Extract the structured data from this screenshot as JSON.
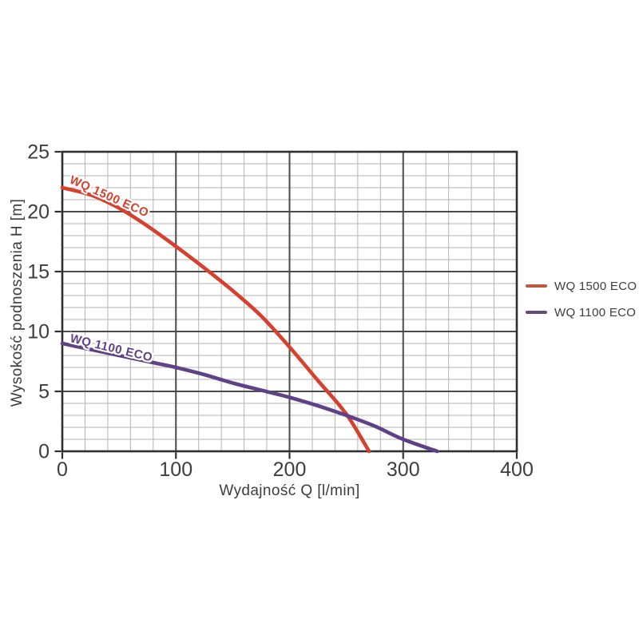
{
  "chart_data": {
    "type": "line",
    "title": "",
    "xlabel": "Wydajność Q [l/min]",
    "ylabel": "Wysokość podnoszenia H [m]",
    "xlim": [
      0,
      400
    ],
    "ylim": [
      0,
      25
    ],
    "x_major_ticks": [
      0,
      100,
      200,
      300,
      400
    ],
    "y_major_ticks": [
      0,
      5,
      10,
      15,
      20,
      25
    ],
    "x_minor_step": 20,
    "y_minor_step": 1,
    "grid": "major+minor",
    "legend_position": "right-outside",
    "series": [
      {
        "name": "WQ 1500 ECO",
        "color": "#d6402c",
        "points": [
          [
            0,
            22
          ],
          [
            25,
            21.4
          ],
          [
            50,
            20.3
          ],
          [
            75,
            18.8
          ],
          [
            100,
            17.1
          ],
          [
            125,
            15.3
          ],
          [
            150,
            13.4
          ],
          [
            175,
            11.3
          ],
          [
            200,
            8.7
          ],
          [
            225,
            5.9
          ],
          [
            250,
            3.1
          ],
          [
            270,
            0
          ]
        ]
      },
      {
        "name": "WQ 1100 ECO",
        "color": "#5e4187",
        "points": [
          [
            0,
            9
          ],
          [
            25,
            8.5
          ],
          [
            50,
            8.0
          ],
          [
            75,
            7.5
          ],
          [
            100,
            7.0
          ],
          [
            125,
            6.4
          ],
          [
            150,
            5.7
          ],
          [
            175,
            5.1
          ],
          [
            200,
            4.5
          ],
          [
            225,
            3.8
          ],
          [
            250,
            3.0
          ],
          [
            275,
            2.1
          ],
          [
            300,
            1.0
          ],
          [
            330,
            0
          ]
        ]
      }
    ]
  },
  "legend": {
    "items": [
      {
        "label": "WQ 1500 ECO",
        "color": "#bf5741"
      },
      {
        "label": "WQ 1100 ECO",
        "color": "#66497f"
      }
    ]
  },
  "colors": {
    "background": "#ffffff",
    "frame": "#303030",
    "grid_major": "#4a4a4a",
    "grid_minor": "#b3b3b3",
    "text": "#3d3d3d"
  }
}
